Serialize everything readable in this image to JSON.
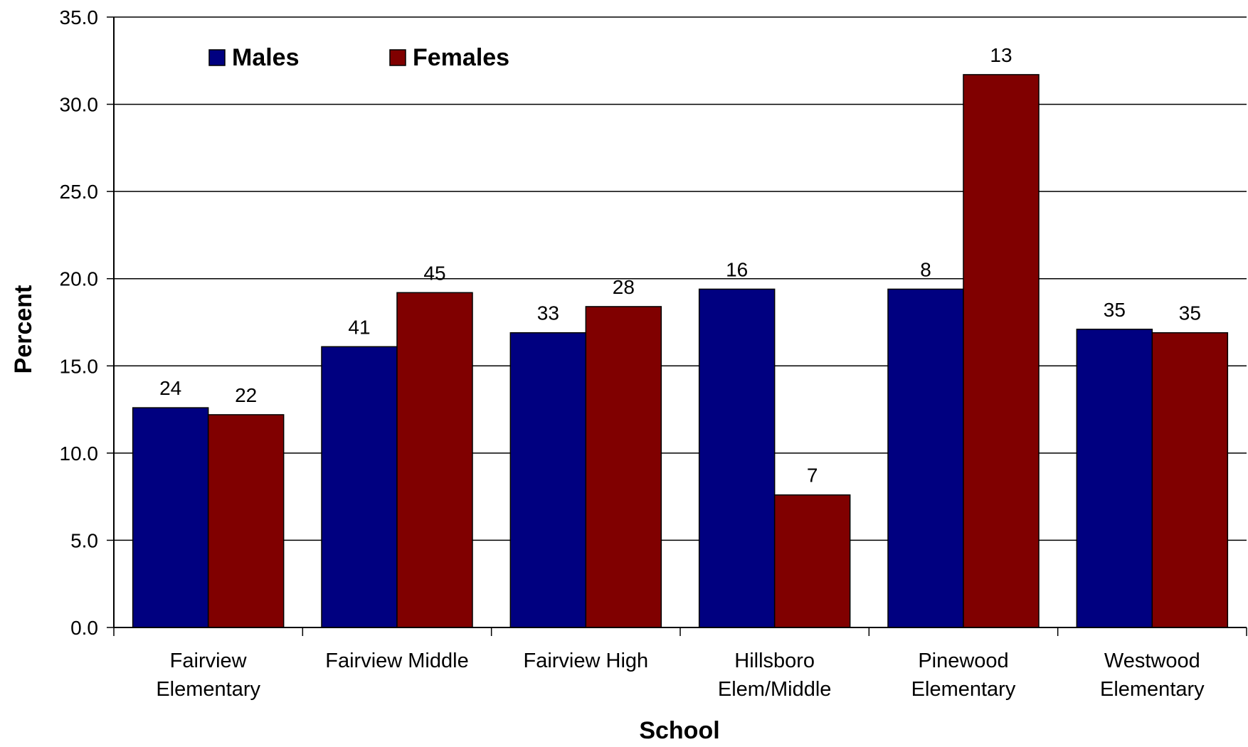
{
  "chart_data": {
    "type": "bar",
    "title": "",
    "xlabel": "School",
    "ylabel": "Percent",
    "ylim": [
      0,
      35
    ],
    "yticks": [
      "0.0",
      "5.0",
      "10.0",
      "15.0",
      "20.0",
      "25.0",
      "30.0",
      "35.0"
    ],
    "categories": [
      [
        "Fairview",
        "Elementary"
      ],
      [
        "Fairview Middle"
      ],
      [
        "Fairview High"
      ],
      [
        "Hillsboro",
        "Elem/Middle"
      ],
      [
        "Pinewood",
        "Elementary"
      ],
      [
        "Westwood",
        "Elementary"
      ]
    ],
    "series": [
      {
        "name": "Males",
        "color": "#000080",
        "values": [
          12.6,
          16.1,
          16.9,
          19.4,
          19.4,
          17.1
        ],
        "labels": [
          "24",
          "41",
          "33",
          "16",
          "8",
          "35"
        ]
      },
      {
        "name": "Females",
        "color": "#800000",
        "values": [
          12.2,
          19.2,
          18.4,
          7.6,
          31.7,
          16.9
        ],
        "labels": [
          "22",
          "45",
          "28",
          "7",
          "13",
          "35"
        ]
      }
    ],
    "grid": true,
    "legend": "top-left"
  }
}
